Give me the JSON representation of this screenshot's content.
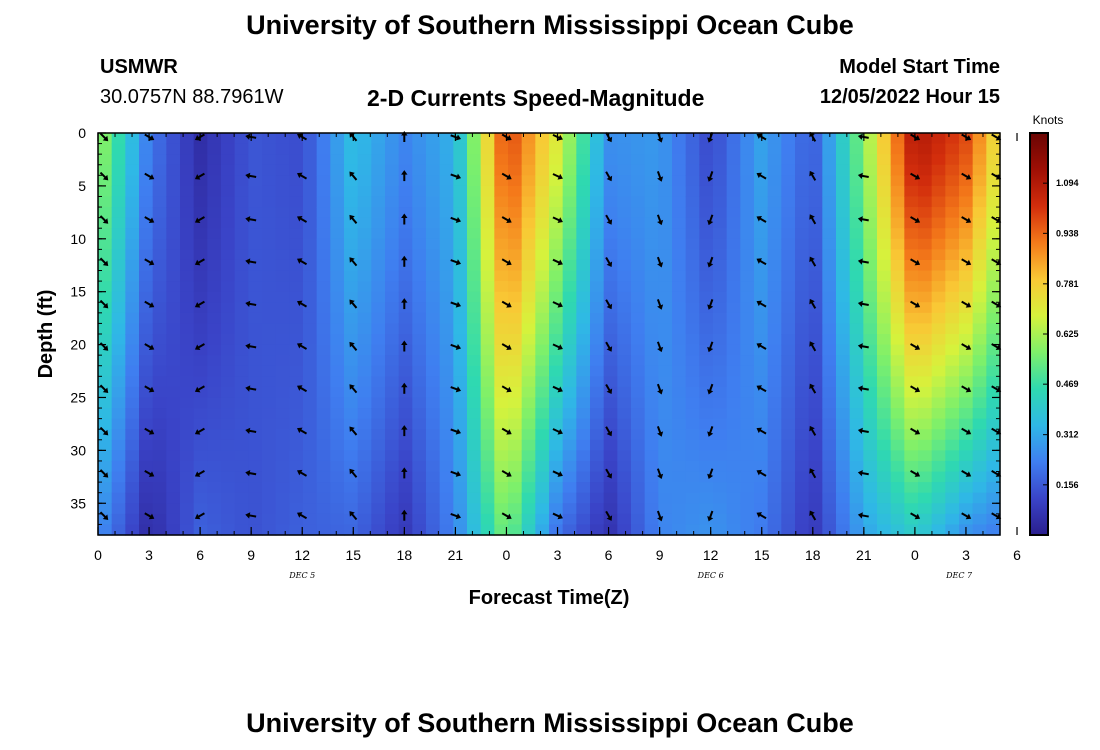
{
  "header": {
    "title": "University of Southern Mississippi Ocean Cube",
    "station_id": "USMWR",
    "coordinates": "30.0757N  88.7961W",
    "plot_title": "2-D Currents Speed-Magnitude",
    "model_start_label": "Model Start Time",
    "model_start_value": "12/05/2022 Hour 15",
    "footer_title": "University of Southern Mississippi Ocean Cube"
  },
  "chart_data": {
    "type": "heatmap",
    "title": "2-D Currents Speed-Magnitude",
    "xlabel": "Forecast Time(Z)",
    "ylabel": "Depth (ft)",
    "colorbar_label": "Knots",
    "x_tick_labels": [
      "0",
      "3",
      "6",
      "9",
      "12",
      "15",
      "18",
      "21",
      "0",
      "3",
      "6",
      "9",
      "12",
      "15",
      "18",
      "21",
      "0",
      "3",
      "6"
    ],
    "x_range_hours": [
      0,
      53
    ],
    "date_labels": [
      {
        "text": "DEC 5",
        "hour": 12
      },
      {
        "text": "DEC 6",
        "hour": 36
      },
      {
        "text": "DEC 7",
        "hour": 50.6
      }
    ],
    "y_ticks": [
      0,
      5,
      10,
      15,
      20,
      25,
      30,
      35
    ],
    "y_range": [
      0,
      38
    ],
    "y_inverted": true,
    "colorbar_ticks": [
      "1.094",
      "0.938",
      "0.781",
      "0.625",
      "0.469",
      "0.312",
      "0.156"
    ],
    "colorbar_range": [
      0,
      1.25
    ],
    "colormap": [
      "#2a1e8e",
      "#3a44c8",
      "#3f7ef0",
      "#2fb8e6",
      "#2fd9b0",
      "#7ef06a",
      "#d6f23c",
      "#f9c835",
      "#f47a1a",
      "#d22d0c",
      "#9e0f05",
      "#6a0503"
    ],
    "depth_levels_ft": [
      0,
      3.7,
      7.8,
      11.8,
      15.8,
      19.8,
      23.8,
      27.8,
      31.8,
      35.8
    ],
    "speed_profile_knots": [
      {
        "hour": 0,
        "surface": 0.62,
        "bottom": 0.26
      },
      {
        "hour": 3,
        "surface": 0.22,
        "bottom": 0.04
      },
      {
        "hour": 6,
        "surface": 0.05,
        "bottom": 0.17
      },
      {
        "hour": 9,
        "surface": 0.15,
        "bottom": 0.14
      },
      {
        "hour": 12,
        "surface": 0.13,
        "bottom": 0.17
      },
      {
        "hour": 15,
        "surface": 0.36,
        "bottom": 0.18
      },
      {
        "hour": 18,
        "surface": 0.24,
        "bottom": 0.08
      },
      {
        "hour": 21,
        "surface": 0.33,
        "bottom": 0.24
      },
      {
        "hour": 24,
        "surface": 1.0,
        "bottom": 0.56
      },
      {
        "hour": 27,
        "surface": 0.7,
        "bottom": 0.2
      },
      {
        "hour": 30,
        "surface": 0.26,
        "bottom": 0.06
      },
      {
        "hour": 33,
        "surface": 0.28,
        "bottom": 0.24
      },
      {
        "hour": 36,
        "surface": 0.12,
        "bottom": 0.27
      },
      {
        "hour": 39,
        "surface": 0.3,
        "bottom": 0.22
      },
      {
        "hour": 42,
        "surface": 0.16,
        "bottom": 0.08
      },
      {
        "hour": 45,
        "surface": 0.58,
        "bottom": 0.3
      },
      {
        "hour": 48,
        "surface": 1.1,
        "bottom": 0.4
      },
      {
        "hour": 51,
        "surface": 0.98,
        "bottom": 0.26
      },
      {
        "hour": 53,
        "surface": 0.72,
        "bottom": 0.22
      }
    ],
    "vector_arrows": [
      {
        "hour": 0,
        "direction_deg": 135
      },
      {
        "hour": 3,
        "direction_deg": 120
      },
      {
        "hour": 6,
        "direction_deg": 240
      },
      {
        "hour": 9,
        "direction_deg": 280
      },
      {
        "hour": 12,
        "direction_deg": 300
      },
      {
        "hour": 15,
        "direction_deg": 320
      },
      {
        "hour": 18,
        "direction_deg": 0
      },
      {
        "hour": 21,
        "direction_deg": 110
      },
      {
        "hour": 24,
        "direction_deg": 120
      },
      {
        "hour": 27,
        "direction_deg": 115
      },
      {
        "hour": 30,
        "direction_deg": 150
      },
      {
        "hour": 33,
        "direction_deg": 160
      },
      {
        "hour": 36,
        "direction_deg": 200
      },
      {
        "hour": 39,
        "direction_deg": 300
      },
      {
        "hour": 42,
        "direction_deg": 330
      },
      {
        "hour": 45,
        "direction_deg": 280
      },
      {
        "hour": 48,
        "direction_deg": 120
      },
      {
        "hour": 51,
        "direction_deg": 120
      },
      {
        "hour": 53,
        "direction_deg": 120
      }
    ]
  }
}
